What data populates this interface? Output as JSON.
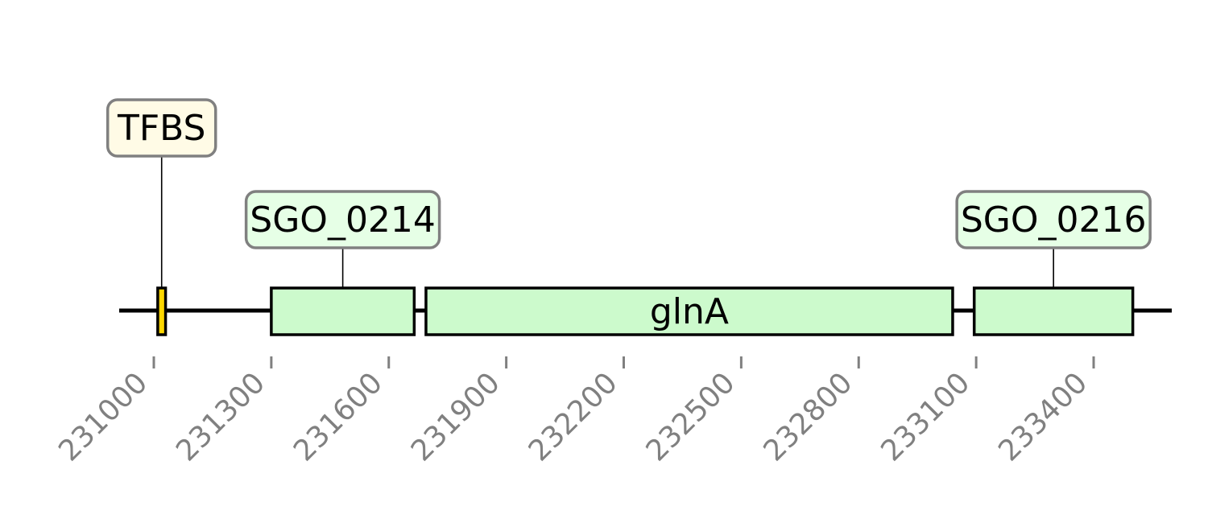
{
  "diagram": {
    "axis": {
      "start": 230970,
      "end": 233640,
      "ticks": [
        231000,
        231300,
        231600,
        231900,
        232200,
        232500,
        232800,
        233100,
        233400
      ]
    },
    "features": [
      {
        "id": "tfbs",
        "label": "TFBS",
        "start": 231010,
        "end": 231030,
        "fill": "#ffd700",
        "label_fill": "#fffbe6",
        "label_mode": "above",
        "label_row": 2
      },
      {
        "id": "sgo_0214",
        "label": "SGO_0214",
        "start": 231300,
        "end": 231665,
        "fill": "#ccfacc",
        "label_fill": "#e6ffe6",
        "label_mode": "above",
        "label_row": 1
      },
      {
        "id": "glna",
        "label": "glnA",
        "start": 231695,
        "end": 233040,
        "fill": "#ccfacc",
        "label_mode": "inline"
      },
      {
        "id": "sgo_0216",
        "label": "SGO_0216",
        "start": 233095,
        "end": 233500,
        "fill": "#ccfacc",
        "label_fill": "#e6ffe6",
        "label_mode": "above",
        "label_row": 1
      }
    ]
  }
}
